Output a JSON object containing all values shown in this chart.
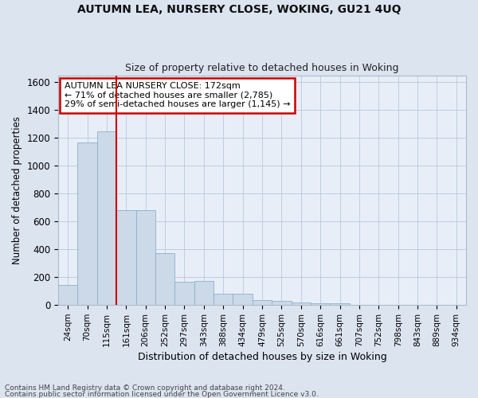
{
  "title": "AUTUMN LEA, NURSERY CLOSE, WOKING, GU21 4UQ",
  "subtitle": "Size of property relative to detached houses in Woking",
  "xlabel": "Distribution of detached houses by size in Woking",
  "ylabel": "Number of detached properties",
  "bar_color": "#ccd9e8",
  "bar_edgecolor": "#8ab0cc",
  "grid_color": "#b8c8dc",
  "fig_facecolor": "#dce4f0",
  "axes_facecolor": "#e8eef8",
  "categories": [
    "24sqm",
    "70sqm",
    "115sqm",
    "161sqm",
    "206sqm",
    "252sqm",
    "297sqm",
    "343sqm",
    "388sqm",
    "434sqm",
    "479sqm",
    "525sqm",
    "570sqm",
    "616sqm",
    "661sqm",
    "707sqm",
    "752sqm",
    "798sqm",
    "843sqm",
    "889sqm",
    "934sqm"
  ],
  "values": [
    145,
    1165,
    1250,
    680,
    680,
    370,
    165,
    170,
    80,
    80,
    35,
    30,
    20,
    10,
    10,
    0,
    0,
    0,
    0,
    0,
    0
  ],
  "ylim": [
    0,
    1650
  ],
  "yticks": [
    0,
    200,
    400,
    600,
    800,
    1000,
    1200,
    1400,
    1600
  ],
  "property_line_x": 3.0,
  "annotation_text": "AUTUMN LEA NURSERY CLOSE: 172sqm\n← 71% of detached houses are smaller (2,785)\n29% of semi-detached houses are larger (1,145) →",
  "annotation_box_color": "#ffffff",
  "annotation_box_edgecolor": "#cc0000",
  "annotation_line_color": "#cc0000",
  "footer_line1": "Contains HM Land Registry data © Crown copyright and database right 2024.",
  "footer_line2": "Contains public sector information licensed under the Open Government Licence v3.0."
}
